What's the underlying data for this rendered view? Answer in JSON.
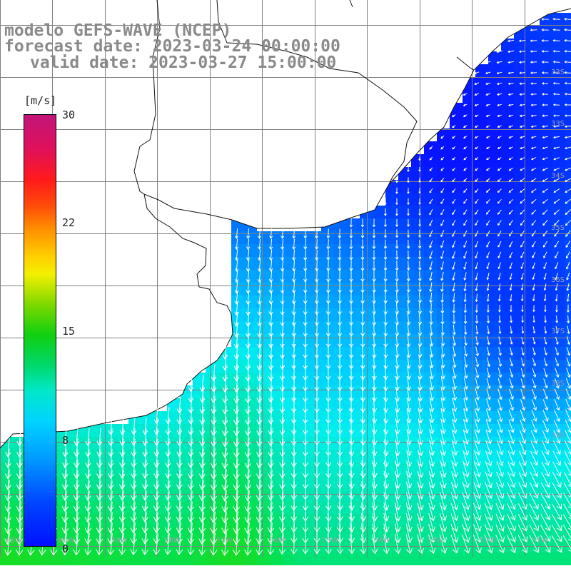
{
  "header": {
    "line1": "modelo GEFS-WAVE (NCEP)",
    "line2": "forecast date: 2023-03-24 00:00:00",
    "line3": "valid date: 2023-03-27 15:00:00"
  },
  "colorbar": {
    "unit": "[m/s]",
    "ticks": [
      "30",
      "22",
      "15",
      "8",
      "0"
    ]
  },
  "lat_labels": [
    "33S",
    "33S",
    "34S",
    "35S",
    "36S",
    "37S",
    "38S",
    "39S"
  ],
  "lon_labels": [
    "61W",
    "60W",
    "59W",
    "58W",
    "57W",
    "56W",
    "55W",
    "54W",
    "53W",
    "52W",
    "51W"
  ],
  "colors": {
    "land": "#ffffff",
    "coast": "#111111",
    "grid": "#808080",
    "arrow": "#ffffff",
    "title": "#8a8a8a"
  }
}
